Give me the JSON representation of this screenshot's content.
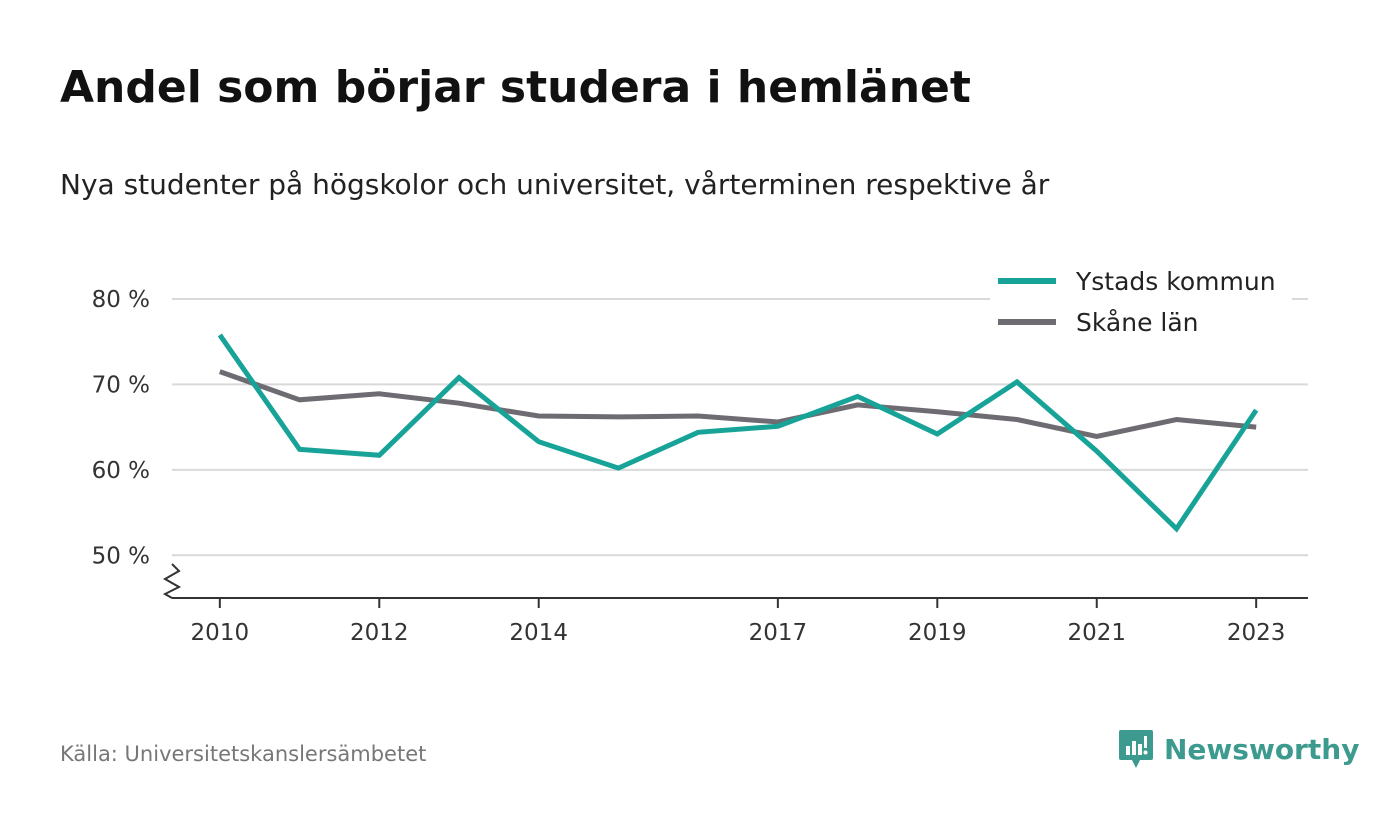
{
  "header": {
    "title": "Andel som börjar studera i hemlänet",
    "subtitle": "Nya studenter på högskolor och universitet, vårterminen respektive år"
  },
  "footer": {
    "source": "Källa: Universitetskanslersämbetet",
    "brand": "Newsworthy"
  },
  "colors": {
    "series_1": "#17a398",
    "series_2": "#6e6c72",
    "grid": "#d9d9d9",
    "axis": "#333333",
    "brand": "#3d9a8f"
  },
  "chart_data": {
    "type": "line",
    "title": "Andel som börjar studera i hemlänet",
    "subtitle": "Nya studenter på högskolor och universitet, vårterminen respektive år",
    "x": [
      2010,
      2011,
      2012,
      2013,
      2014,
      2015,
      2016,
      2017,
      2018,
      2019,
      2020,
      2021,
      2022,
      2023
    ],
    "xticks": [
      2010,
      2012,
      2014,
      2017,
      2019,
      2021,
      2023
    ],
    "xtick_labels": [
      "2010",
      "2012",
      "2014",
      "2017",
      "2019",
      "2021",
      "2023"
    ],
    "yticks": [
      50,
      60,
      70,
      80
    ],
    "ytick_labels": [
      "50 %",
      "60 %",
      "70 %",
      "80 %"
    ],
    "ylim": [
      45,
      80
    ],
    "xlim": [
      2009.4,
      2023.65
    ],
    "y_axis_break": true,
    "grid": true,
    "legend_position": "top-right",
    "series": [
      {
        "name": "Ystads kommun",
        "color": "#17a398",
        "values": [
          75.8,
          62.4,
          61.7,
          70.8,
          63.3,
          60.2,
          64.4,
          65.1,
          68.6,
          64.2,
          70.3,
          62.2,
          53.1,
          67.0
        ]
      },
      {
        "name": "Skåne län",
        "color": "#6e6c72",
        "values": [
          71.5,
          68.2,
          68.9,
          67.8,
          66.3,
          66.2,
          66.3,
          65.6,
          67.6,
          66.8,
          65.9,
          63.9,
          65.9,
          65.0
        ]
      }
    ]
  }
}
